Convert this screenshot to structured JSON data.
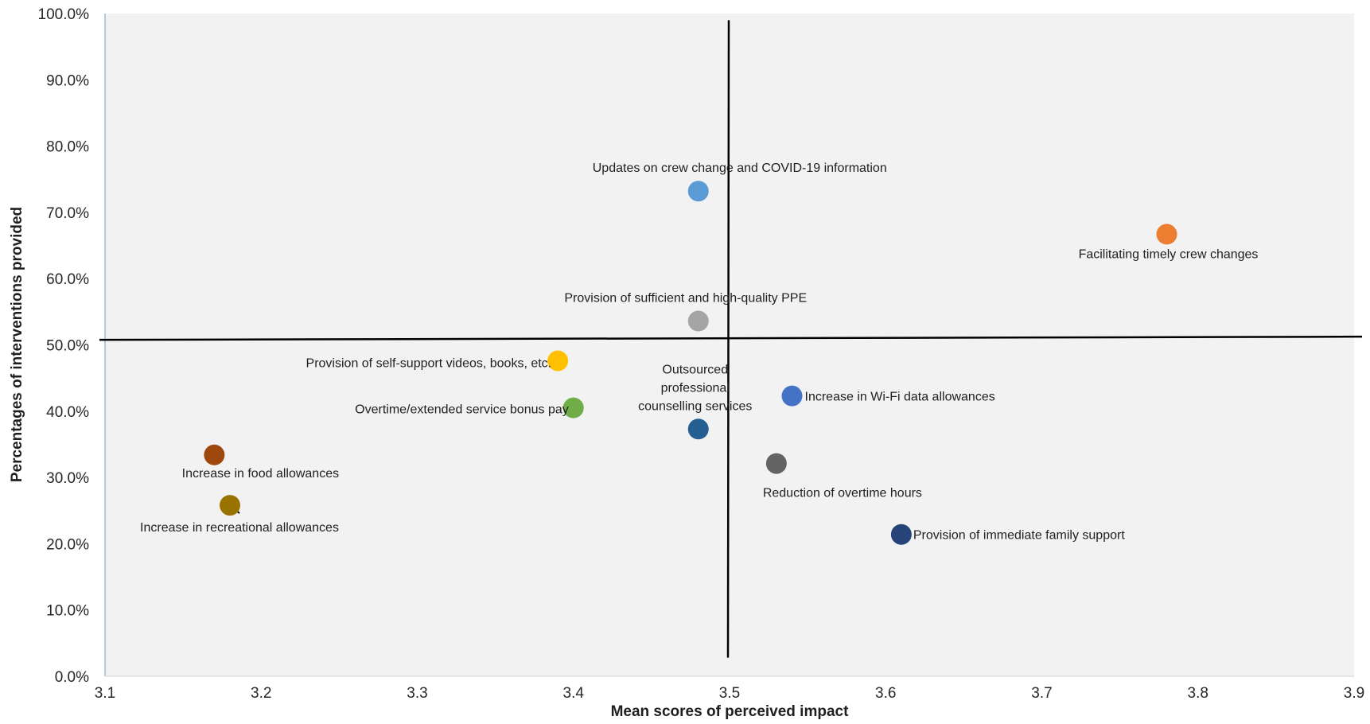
{
  "chart_data": {
    "type": "scatter",
    "title": "",
    "xlabel": "Mean scores of perceived impact",
    "ylabel": "Percentages of interventions provided",
    "xlim": [
      3.1,
      3.9
    ],
    "ylim": [
      0,
      100
    ],
    "x_ticks": [
      "3.1",
      "3.2",
      "3.3",
      "3.4",
      "3.5",
      "3.6",
      "3.7",
      "3.8",
      "3.9"
    ],
    "y_ticks": [
      "0.0%",
      "10.0%",
      "20.0%",
      "30.0%",
      "40.0%",
      "50.0%",
      "60.0%",
      "70.0%",
      "80.0%",
      "90.0%",
      "100.0%"
    ],
    "grid": false,
    "legend": "none",
    "reference_lines": {
      "vertical_x": 3.5,
      "horizontal_y": 51
    },
    "points": [
      {
        "label": "Updates on crew change and COVID-19 information",
        "x": 3.48,
        "y": 73.2,
        "color": "#5B9BD5"
      },
      {
        "label": "Facilitating timely crew changes",
        "x": 3.78,
        "y": 66.7,
        "color": "#ED7D31"
      },
      {
        "label": "Provision of sufficient and high-quality PPE",
        "x": 3.48,
        "y": 53.6,
        "color": "#A5A5A5"
      },
      {
        "label": "Provision of self-support videos, books, etc.",
        "x": 3.39,
        "y": 47.6,
        "color": "#FFC000"
      },
      {
        "label": "Increase in Wi-Fi data allowances",
        "x": 3.54,
        "y": 42.3,
        "color": "#4472C4"
      },
      {
        "label": "Overtime/extended service bonus pay",
        "x": 3.4,
        "y": 40.5,
        "color": "#70AD47"
      },
      {
        "label": "Outsourced professional counselling services",
        "x": 3.48,
        "y": 37.3,
        "color": "#255E91"
      },
      {
        "label": "Increase in food allowances",
        "x": 3.17,
        "y": 33.4,
        "color": "#9E480E"
      },
      {
        "label": "Reduction of overtime hours",
        "x": 3.53,
        "y": 32.1,
        "color": "#636363"
      },
      {
        "label": "Increase in recreational allowances",
        "x": 3.18,
        "y": 25.8,
        "color": "#997300"
      },
      {
        "label": "Provision of immediate family support",
        "x": 3.61,
        "y": 21.4,
        "color": "#264478"
      }
    ]
  }
}
